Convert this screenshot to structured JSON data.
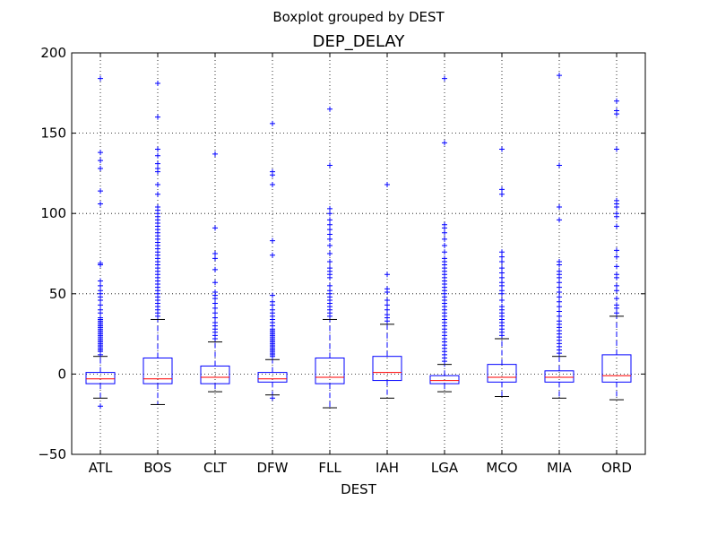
{
  "chart_data": {
    "type": "boxplot",
    "suptitle": "Boxplot grouped by DEST",
    "title": "DEP_DELAY",
    "xlabel": "DEST",
    "ylabel": "",
    "ylim": [
      -50,
      200
    ],
    "yticks": [
      -50,
      0,
      50,
      100,
      150,
      200
    ],
    "grid": true,
    "colors": {
      "box": "#0000ff",
      "median": "#ff0000",
      "whisker": "#0000ff",
      "cap": "#000000",
      "flier": "#0000ff",
      "grid": "#000000"
    },
    "categories": [
      "ATL",
      "BOS",
      "CLT",
      "DFW",
      "FLL",
      "IAH",
      "LGA",
      "MCO",
      "MIA",
      "ORD"
    ],
    "boxes": [
      {
        "label": "ATL",
        "whislo": -15,
        "q1": -6,
        "med": -3,
        "q3": 1,
        "whishi": 11,
        "fliers": [
          -20,
          12,
          14,
          15,
          16,
          17,
          18,
          19,
          20,
          21,
          22,
          23,
          24,
          25,
          26,
          27,
          28,
          29,
          30,
          31,
          32,
          33,
          34,
          35,
          38,
          40,
          43,
          46,
          48,
          50,
          52,
          55,
          58,
          68,
          69,
          106,
          114,
          128,
          133,
          138,
          184
        ]
      },
      {
        "label": "BOS",
        "whislo": -19,
        "q1": -6,
        "med": -3,
        "q3": 10,
        "whishi": 34,
        "fliers": [
          36,
          38,
          40,
          42,
          44,
          46,
          48,
          50,
          52,
          54,
          56,
          58,
          60,
          62,
          64,
          66,
          68,
          70,
          72,
          74,
          76,
          78,
          80,
          82,
          84,
          86,
          88,
          90,
          92,
          94,
          96,
          98,
          100,
          102,
          104,
          112,
          118,
          126,
          128,
          131,
          136,
          140,
          160,
          181
        ]
      },
      {
        "label": "CLT",
        "whislo": -11,
        "q1": -6,
        "med": -2,
        "q3": 5,
        "whishi": 20,
        "fliers": [
          22,
          24,
          26,
          28,
          30,
          32,
          35,
          38,
          41,
          44,
          47,
          49,
          51,
          57,
          65,
          72,
          75,
          91,
          137
        ]
      },
      {
        "label": "DFW",
        "whislo": -13,
        "q1": -5,
        "med": -3,
        "q3": 1,
        "whishi": 9,
        "fliers": [
          -15,
          11,
          12,
          13,
          14,
          15,
          16,
          17,
          18,
          19,
          20,
          21,
          22,
          23,
          24,
          25,
          26,
          27,
          28,
          30,
          32,
          34,
          36,
          38,
          40,
          43,
          45,
          49,
          74,
          83,
          118,
          124,
          126,
          156
        ]
      },
      {
        "label": "FLL",
        "whislo": -21,
        "q1": -6,
        "med": -2,
        "q3": 10,
        "whishi": 34,
        "fliers": [
          36,
          38,
          40,
          42,
          44,
          46,
          48,
          50,
          52,
          55,
          60,
          62,
          64,
          66,
          70,
          75,
          80,
          84,
          87,
          90,
          93,
          96,
          100,
          103,
          130,
          165
        ]
      },
      {
        "label": "IAH",
        "whislo": -15,
        "q1": -4,
        "med": 1,
        "q3": 11,
        "whishi": 31,
        "fliers": [
          33,
          35,
          37,
          40,
          43,
          46,
          51,
          53,
          62,
          118
        ]
      },
      {
        "label": "LGA",
        "whislo": -11,
        "q1": -6,
        "med": -4,
        "q3": -1,
        "whishi": 6,
        "fliers": [
          8,
          10,
          12,
          14,
          16,
          18,
          20,
          22,
          24,
          26,
          28,
          30,
          32,
          34,
          36,
          38,
          40,
          42,
          44,
          46,
          48,
          50,
          52,
          54,
          56,
          58,
          60,
          62,
          64,
          66,
          68,
          70,
          72,
          76,
          80,
          84,
          88,
          91,
          93,
          144,
          184
        ]
      },
      {
        "label": "MCO",
        "whislo": -14,
        "q1": -5,
        "med": -2,
        "q3": 6,
        "whishi": 22,
        "fliers": [
          24,
          26,
          28,
          30,
          32,
          34,
          36,
          38,
          40,
          42,
          46,
          50,
          52,
          55,
          57,
          60,
          63,
          66,
          70,
          73,
          76,
          112,
          115,
          140
        ]
      },
      {
        "label": "MIA",
        "whislo": -15,
        "q1": -5,
        "med": -2,
        "q3": 2,
        "whishi": 11,
        "fliers": [
          13,
          15,
          17,
          19,
          21,
          23,
          25,
          27,
          29,
          31,
          33,
          36,
          39,
          42,
          45,
          48,
          51,
          54,
          57,
          60,
          62,
          64,
          68,
          70,
          96,
          104,
          130,
          186
        ]
      },
      {
        "label": "ORD",
        "whislo": -16,
        "q1": -5,
        "med": -1,
        "q3": 12,
        "whishi": 36,
        "fliers": [
          38,
          41,
          43,
          47,
          52,
          55,
          60,
          62,
          67,
          73,
          77,
          92,
          98,
          100,
          104,
          106,
          108,
          140,
          162,
          164,
          170
        ]
      }
    ]
  }
}
